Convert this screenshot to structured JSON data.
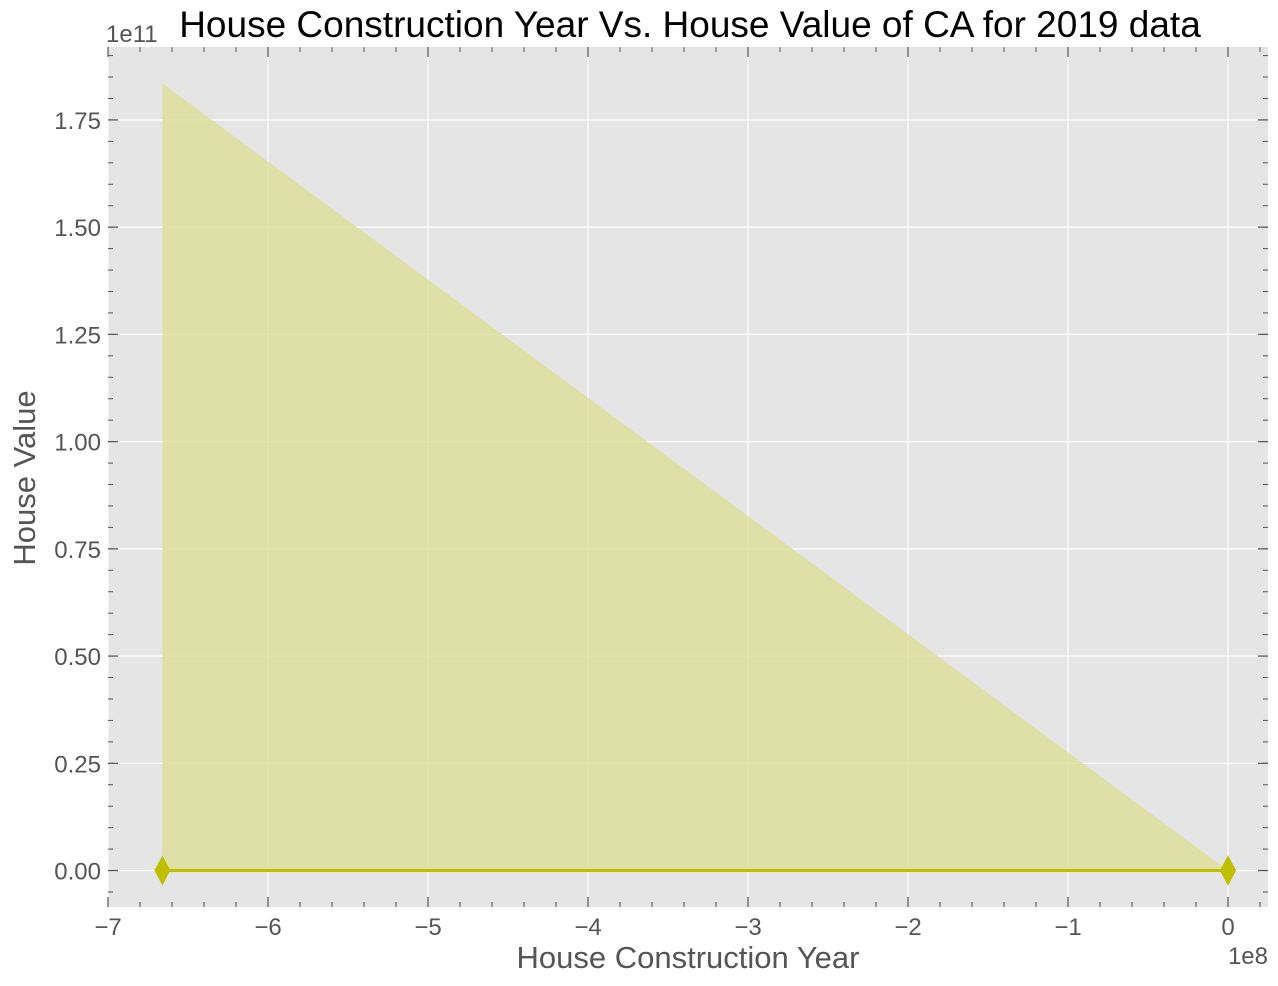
{
  "chart_data": {
    "type": "line",
    "title": "House Construction Year  Vs. House Value of CA for 2019 data",
    "xlabel": "House Construction Year",
    "ylabel": "House Value",
    "x_offset_label": "1e8",
    "y_offset_label": "1e11",
    "xlim": [
      -7,
      0.25
    ],
    "ylim": [
      -0.085,
      1.92
    ],
    "x_ticks": [
      -7,
      -6,
      -5,
      -4,
      -3,
      -2,
      -1,
      0
    ],
    "x_tick_labels": [
      "−7",
      "−6",
      "−5",
      "−4",
      "−3",
      "−2",
      "−1",
      "0"
    ],
    "y_ticks": [
      0.0,
      0.25,
      0.5,
      0.75,
      1.0,
      1.25,
      1.5,
      1.75
    ],
    "y_tick_labels": [
      "0.00",
      "0.25",
      "0.50",
      "0.75",
      "1.00",
      "1.25",
      "1.50",
      "1.75"
    ],
    "grid": true,
    "background": "#e5e5e5",
    "series": [
      {
        "marker": "diamond",
        "color": "#bfbf00",
        "x": [
          -6.66,
          0.0,
          0.0,
          0.0
        ],
        "y": [
          0.0,
          0.0,
          0.0,
          0.0
        ]
      }
    ],
    "band": {
      "color": "#dede9e",
      "polygon": [
        [
          -6.66,
          0.0
        ],
        [
          -6.66,
          1.835
        ],
        [
          0.0,
          0.0
        ]
      ]
    }
  }
}
